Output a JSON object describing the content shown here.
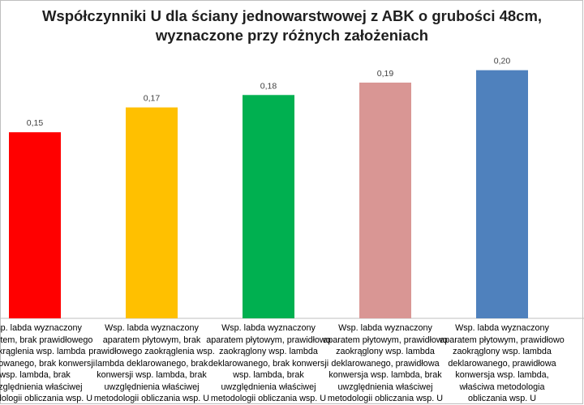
{
  "chart_data": {
    "type": "bar",
    "title": "Współczynniki U dla ściany jednowarstwowej z ABK o grubości 48cm, wyznaczone przy różnych założeniach",
    "title_lines": [
      "Współczynniki U dla ściany jednowarstwowej z ABK o grubości 48cm,",
      "wyznaczone przy różnych założeniach"
    ],
    "categories": [
      "Wsp. labda wyznaczony isometem, brak prawidłowego zaokrąglenia wsp. lambda deklarowanego, brak konwersji wsp. lambda, brak uwzględnienia właściwej metodologii obliczania wsp. U",
      "Wsp. labda wyznaczony aparatem płytowym, brak prawidłowego zaokrąglenia wsp. lambda deklarowanego, brak konwersji wsp. lambda, brak uwzględnienia właściwej metodologii obliczania wsp. U",
      "Wsp. labda wyznaczony aparatem płytowym, prawidłowo zaokrąglony wsp. lambda deklarowanego, brak konwersji wsp. lambda, brak uwzględnienia właściwej metodologii obliczania wsp. U",
      "Wsp. labda wyznaczony aparatem płytowym, prawidłowo zaokrąglony wsp. lambda deklarowanego, prawidłowa konwersja wsp. lambda, brak uwzględnienia właściwej metodologii obliczania wsp. U",
      "Wsp. labda wyznaczony aparatem płytowym, prawidłowo zaokrąglony wsp. lambda deklarowanego, prawidłowa konwersja wsp. lambda, właściwa metodologia obliczania wsp. U"
    ],
    "values": [
      0.15,
      0.17,
      0.18,
      0.19,
      0.2
    ],
    "data_labels": [
      "0,15",
      "0,17",
      "0,18",
      "0,19",
      "0,20"
    ],
    "colors": [
      "#ff0000",
      "#ffc000",
      "#00b050",
      "#d99694",
      "#4f81bd"
    ],
    "ylim": [
      0,
      0.205
    ],
    "grid": false,
    "legend": "none",
    "xlabel": "",
    "ylabel": ""
  }
}
